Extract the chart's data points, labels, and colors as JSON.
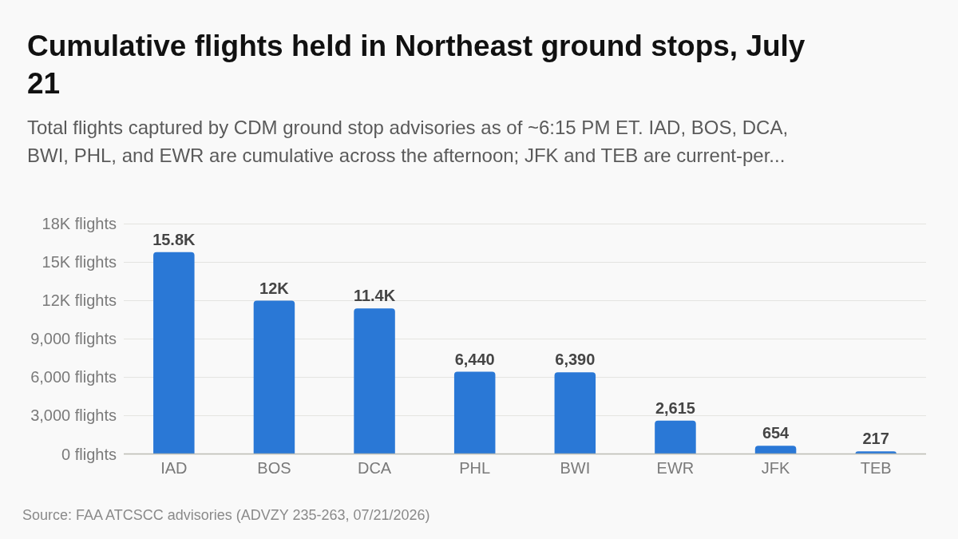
{
  "chart_data": {
    "type": "bar",
    "title": "Cumulative flights held in Northeast ground stops, July 21",
    "subtitle": "Total flights captured by CDM ground stop advisories as of ~6:15 PM ET. IAD, BOS, DCA, BWI, PHL, and EWR are cumulative across the afternoon; JFK and TEB are current-per...",
    "categories": [
      "IAD",
      "BOS",
      "DCA",
      "PHL",
      "BWI",
      "EWR",
      "JFK",
      "TEB"
    ],
    "values": [
      15800,
      12000,
      11400,
      6440,
      6390,
      2615,
      654,
      217
    ],
    "value_labels": [
      "15.8K",
      "12K",
      "11.4K",
      "6,440",
      "6,390",
      "2,615",
      "654",
      "217"
    ],
    "color": "#2a78d6",
    "ylim": [
      0,
      18000
    ],
    "yticks": [
      {
        "value": 0,
        "label": "0 flights"
      },
      {
        "value": 3000,
        "label": "3,000 flights"
      },
      {
        "value": 6000,
        "label": "6,000 flights"
      },
      {
        "value": 9000,
        "label": "9,000 flights"
      },
      {
        "value": 12000,
        "label": "12K flights"
      },
      {
        "value": 15000,
        "label": "15K flights"
      },
      {
        "value": 18000,
        "label": "18K flights"
      }
    ],
    "grid": "y",
    "annotations": [
      "Source: FAA ATCSCC advisories (ADVZY 235-263, 07/21/2026)"
    ]
  }
}
